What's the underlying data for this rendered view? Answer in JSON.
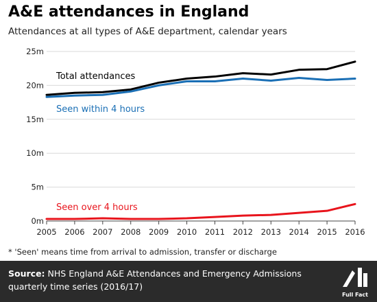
{
  "title": "A&E attendances in England",
  "subtitle": "Attendances at all types of A&E department, calendar years",
  "footnote": "* 'Seen' means time from arrival to admission, transfer or discharge",
  "source": {
    "label": "Source:",
    "text": "NHS England A&E Attendances and Emergency Admissions quarterly time series (2016/17)"
  },
  "logo": {
    "text": "Full Fact",
    "icon": "full-fact-logo"
  },
  "chart_data": {
    "type": "line",
    "x": [
      2005,
      2006,
      2007,
      2008,
      2009,
      2010,
      2011,
      2012,
      2013,
      2014,
      2015,
      2016
    ],
    "ylim": [
      0,
      25
    ],
    "y_ticks": [
      0,
      5,
      10,
      15,
      20,
      25
    ],
    "y_tick_labels": [
      "0m",
      "5m",
      "10m",
      "15m",
      "20m",
      "25m"
    ],
    "x_tick_labels": [
      "2005",
      "2006",
      "2007",
      "2008",
      "2009",
      "2010",
      "2011",
      "2012",
      "2013",
      "2014",
      "2015",
      "2016"
    ],
    "grid": "horizontal",
    "legend": "inline labels",
    "series": [
      {
        "name": "Total attendances",
        "color": "#000000",
        "values": [
          18.6,
          18.9,
          19.0,
          19.4,
          20.4,
          21.0,
          21.3,
          21.8,
          21.6,
          22.3,
          22.4,
          23.5
        ]
      },
      {
        "name": "Seen within 4 hours",
        "color": "#1a6fb5",
        "values": [
          18.3,
          18.5,
          18.6,
          19.1,
          20.0,
          20.6,
          20.6,
          21.0,
          20.7,
          21.1,
          20.8,
          21.0
        ]
      },
      {
        "name": "Seen over 4 hours",
        "color": "#e8141c",
        "values": [
          0.3,
          0.3,
          0.4,
          0.3,
          0.3,
          0.4,
          0.6,
          0.8,
          0.9,
          1.2,
          1.5,
          2.5
        ]
      }
    ]
  }
}
